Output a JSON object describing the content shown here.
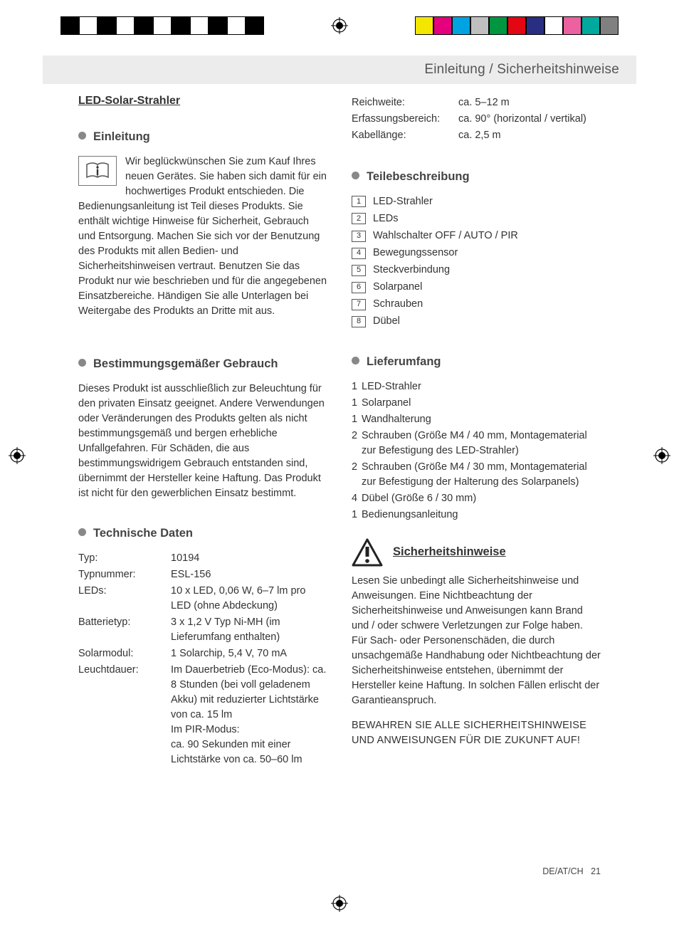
{
  "colorbar_left": [
    "#000000",
    "#ffffff",
    "#000000",
    "#ffffff",
    "#000000",
    "#ffffff",
    "#000000",
    "#ffffff",
    "#000000",
    "#ffffff",
    "#000000"
  ],
  "colorbar_right": [
    "#f3e600",
    "#e5007d",
    "#00a3e2",
    "#bfbfbf",
    "#009640",
    "#e30613",
    "#2a2e82",
    "#ffffff",
    "#ec619f",
    "#00a99d",
    "#808080"
  ],
  "header": {
    "title": "Einleitung / Sicherheitshinweise"
  },
  "product_title": "LED-Solar-Strahler",
  "sections": {
    "einleitung": "Einleitung",
    "gebrauch": "Bestimmungsgemäßer Gebrauch",
    "techdaten": "Technische Daten",
    "teile": "Teilebeschreibung",
    "lieferumfang": "Lieferumfang",
    "sicherheit": "Sicherheitshinweise"
  },
  "intro_text": "Wir beglückwünschen Sie zum Kauf Ihres neuen Gerätes. Sie haben sich damit für ein hochwertiges Produkt entschieden. Die Bedienungsanleitung ist Teil dieses Produkts. Sie enthält wichtige Hinweise für Sicherheit, Gebrauch und Entsorgung. Machen Sie sich vor der Benutzung des Produkts mit allen Bedien- und Sicherheitshinweisen vertraut. Benutzen Sie das Produkt nur wie beschrieben und für die angegebenen Einsatzbereiche. Händigen Sie alle Unterlagen bei Weitergabe des Produkts an Dritte mit aus.",
  "gebrauch_text": "Dieses Produkt ist ausschließlich zur Beleuchtung für den privaten Einsatz geeignet. Andere Verwendungen oder Veränderungen des Produkts gelten als nicht bestimmungsgemäß und bergen erhebliche Unfallgefahren. Für Schäden, die aus bestimmungswidrigem Gebrauch entstanden sind, übernimmt der Hersteller keine Haftung. Das Produkt ist nicht für den gewerblichen Einsatz bestimmt.",
  "tech": [
    {
      "label": "Typ:",
      "value": "10194"
    },
    {
      "label": "Typnummer:",
      "value": "ESL-156"
    },
    {
      "label": "LEDs:",
      "value": "10 x LED, 0,06 W, 6–7 lm pro LED (ohne Abdeckung)"
    },
    {
      "label": "Batterietyp:",
      "value": "3 x 1,2 V Typ Ni-MH (im Lieferumfang enthalten)"
    },
    {
      "label": "Solarmodul:",
      "value": "1 Solarchip, 5,4 V, 70 mA"
    },
    {
      "label": "Leuchtdauer:",
      "value": "Im Dauerbetrieb (Eco-Modus): ca. 8 Stunden (bei voll geladenem Akku) mit reduzierter Lichtstärke von ca. 15 lm\nIm PIR-Modus:\nca. 90 Sekunden mit einer Lichtstärke von ca. 50–60 lm"
    }
  ],
  "tech_right": [
    {
      "label": "Reichweite:",
      "value": "ca. 5–12 m"
    },
    {
      "label": "Erfassungsbereich:",
      "value": "ca. 90° (horizontal / vertikal)"
    },
    {
      "label": "Kabellänge:",
      "value": "ca. 2,5 m"
    }
  ],
  "parts": [
    {
      "n": "1",
      "label": "LED-Strahler"
    },
    {
      "n": "2",
      "label": "LEDs"
    },
    {
      "n": "3",
      "label": "Wahlschalter OFF / AUTO / PIR"
    },
    {
      "n": "4",
      "label": "Bewegungssensor"
    },
    {
      "n": "5",
      "label": "Steckverbindung"
    },
    {
      "n": "6",
      "label": "Solarpanel"
    },
    {
      "n": "7",
      "label": "Schrauben"
    },
    {
      "n": "8",
      "label": "Dübel"
    }
  ],
  "scope": [
    {
      "qty": "1",
      "txt": "LED-Strahler"
    },
    {
      "qty": "1",
      "txt": "Solarpanel"
    },
    {
      "qty": "1",
      "txt": "Wandhalterung"
    },
    {
      "qty": "2",
      "txt": "Schrauben (Größe M4 / 40 mm, Montagematerial zur Befestigung des LED-Strahler)"
    },
    {
      "qty": "2",
      "txt": "Schrauben (Größe M4 / 30 mm, Montagematerial zur Befestigung der Halterung des Solarpanels)"
    },
    {
      "qty": "4",
      "txt": "Dübel (Größe 6 / 30 mm)"
    },
    {
      "qty": "1",
      "txt": "Bedienungsanleitung"
    }
  ],
  "safety_text": "Lesen Sie unbedingt alle Sicherheitshinweise und Anweisungen. Eine Nichtbeachtung der Sicherheitshinweise und Anweisungen kann Brand und / oder schwere Verletzungen zur Folge haben. Für Sach- oder Personenschäden, die durch unsachgemäße Handhabung oder Nichtbeachtung der Sicherheitshinweise entstehen, übernimmt der Hersteller keine Haftung. In solchen Fällen erlischt der Garantieanspruch.",
  "safety_caps": "BEWAHREN SIE ALLE SICHERHEITSHINWEISE UND ANWEISUNGEN FÜR DIE ZUKUNFT AUF!",
  "footer": {
    "lang": "DE/AT/CH",
    "page": "21"
  }
}
